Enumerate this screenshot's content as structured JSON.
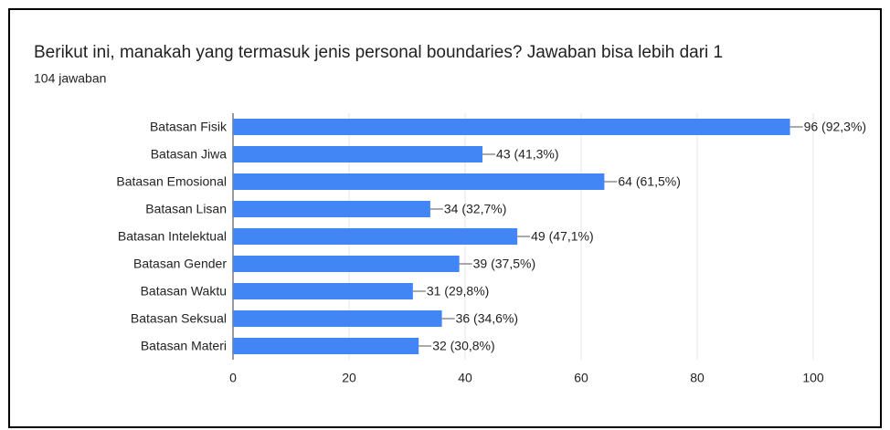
{
  "chart_data": {
    "type": "bar",
    "orientation": "horizontal",
    "title": "Berikut ini, manakah yang termasuk jenis personal boundaries? Jawaban bisa lebih dari 1",
    "subtitle": "104 jawaban",
    "categories": [
      "Batasan Fisik",
      "Batasan Jiwa",
      "Batasan Emosional",
      "Batasan Lisan",
      "Batasan Intelektual",
      "Batasan Gender",
      "Batasan Waktu",
      "Batasan Seksual",
      "Batasan Materi"
    ],
    "values": [
      96,
      43,
      64,
      34,
      49,
      39,
      31,
      36,
      32
    ],
    "value_labels": [
      "96 (92,3%)",
      "43 (41,3%)",
      "64 (61,5%)",
      "34 (32,7%)",
      "49 (47,1%)",
      "39 (37,5%)",
      "31 (29,8%)",
      "36 (34,6%)",
      "32 (30,8%)"
    ],
    "color": "#4285f4",
    "xlim": [
      0,
      100
    ],
    "xticks": [
      0,
      20,
      40,
      60,
      80,
      100
    ],
    "grid": true
  }
}
